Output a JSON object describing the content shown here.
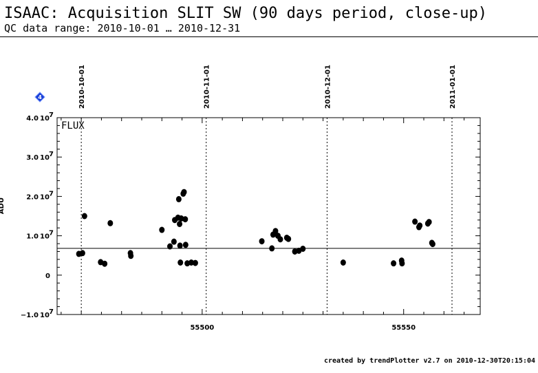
{
  "header": {
    "title": "ISAAC: Acquisition SLIT SW (90 days period, close-up)",
    "subtitle": "QC data range: 2010-10-01 … 2010-12-31"
  },
  "footer": {
    "text": "created by trendPlotter v2.7 on 2010-12-30T20:15:04"
  },
  "chart_data": {
    "type": "scatter",
    "xlabel": "",
    "ylabel": "ADU",
    "panel_label": "FLUX",
    "marker_badge": "4",
    "marker_color": "#1a3fd6",
    "point_color": "#000000",
    "xlim": [
      55464,
      55569
    ],
    "ylim": [
      -10000000,
      40000000
    ],
    "x_ticks": [
      {
        "value": 55500,
        "label": "55500"
      },
      {
        "value": 55550,
        "label": "55550"
      }
    ],
    "y_ticks": [
      {
        "value": 40000000,
        "mant": "4.0",
        "exp": "7"
      },
      {
        "value": 30000000,
        "mant": "3.0",
        "exp": "7"
      },
      {
        "value": 20000000,
        "mant": "2.0",
        "exp": "7"
      },
      {
        "value": 10000000,
        "mant": "1.0",
        "exp": "7"
      },
      {
        "value": 0,
        "mant": "0",
        "exp": ""
      },
      {
        "value": -10000000,
        "mant": "−1.0",
        "exp": "7"
      }
    ],
    "date_markers": [
      {
        "value": 55470,
        "label": "2010-10-01"
      },
      {
        "value": 55501,
        "label": "2010-11-01"
      },
      {
        "value": 55531,
        "label": "2010-12-01"
      },
      {
        "value": 55562,
        "label": "2011-01-01"
      }
    ],
    "reference_line": 6800000,
    "points": [
      {
        "x": 55469.4,
        "y": 5400000
      },
      {
        "x": 55470.3,
        "y": 5600000
      },
      {
        "x": 55470.8,
        "y": 15000000
      },
      {
        "x": 55474.8,
        "y": 3300000
      },
      {
        "x": 55475.8,
        "y": 2900000
      },
      {
        "x": 55477.2,
        "y": 13200000
      },
      {
        "x": 55482.2,
        "y": 5600000
      },
      {
        "x": 55482.3,
        "y": 4900000
      },
      {
        "x": 55490.0,
        "y": 11500000
      },
      {
        "x": 55492.0,
        "y": 7300000
      },
      {
        "x": 55493.0,
        "y": 8500000
      },
      {
        "x": 55493.2,
        "y": 14000000
      },
      {
        "x": 55494.0,
        "y": 14600000
      },
      {
        "x": 55494.2,
        "y": 19300000
      },
      {
        "x": 55494.4,
        "y": 13000000
      },
      {
        "x": 55494.6,
        "y": 3200000
      },
      {
        "x": 55494.5,
        "y": 7500000
      },
      {
        "x": 55494.8,
        "y": 14400000
      },
      {
        "x": 55495.3,
        "y": 20700000
      },
      {
        "x": 55495.5,
        "y": 21100000
      },
      {
        "x": 55495.8,
        "y": 14200000
      },
      {
        "x": 55495.9,
        "y": 7700000
      },
      {
        "x": 55496.3,
        "y": 3000000
      },
      {
        "x": 55497.3,
        "y": 3200000
      },
      {
        "x": 55498.3,
        "y": 3100000
      },
      {
        "x": 55514.8,
        "y": 8600000
      },
      {
        "x": 55517.3,
        "y": 6800000
      },
      {
        "x": 55517.6,
        "y": 10300000
      },
      {
        "x": 55518.2,
        "y": 11200000
      },
      {
        "x": 55518.8,
        "y": 10000000
      },
      {
        "x": 55519.4,
        "y": 9100000
      },
      {
        "x": 55521.0,
        "y": 9500000
      },
      {
        "x": 55521.4,
        "y": 9200000
      },
      {
        "x": 55523.0,
        "y": 6000000
      },
      {
        "x": 55524.0,
        "y": 6200000
      },
      {
        "x": 55525.0,
        "y": 6700000
      },
      {
        "x": 55535.0,
        "y": 3200000
      },
      {
        "x": 55547.5,
        "y": 3000000
      },
      {
        "x": 55549.5,
        "y": 3700000
      },
      {
        "x": 55549.6,
        "y": 3000000
      },
      {
        "x": 55552.8,
        "y": 13600000
      },
      {
        "x": 55553.8,
        "y": 12200000
      },
      {
        "x": 55554.0,
        "y": 12600000
      },
      {
        "x": 55556.0,
        "y": 13100000
      },
      {
        "x": 55556.3,
        "y": 13500000
      },
      {
        "x": 55557.0,
        "y": 8200000
      },
      {
        "x": 55557.2,
        "y": 7900000
      }
    ]
  }
}
